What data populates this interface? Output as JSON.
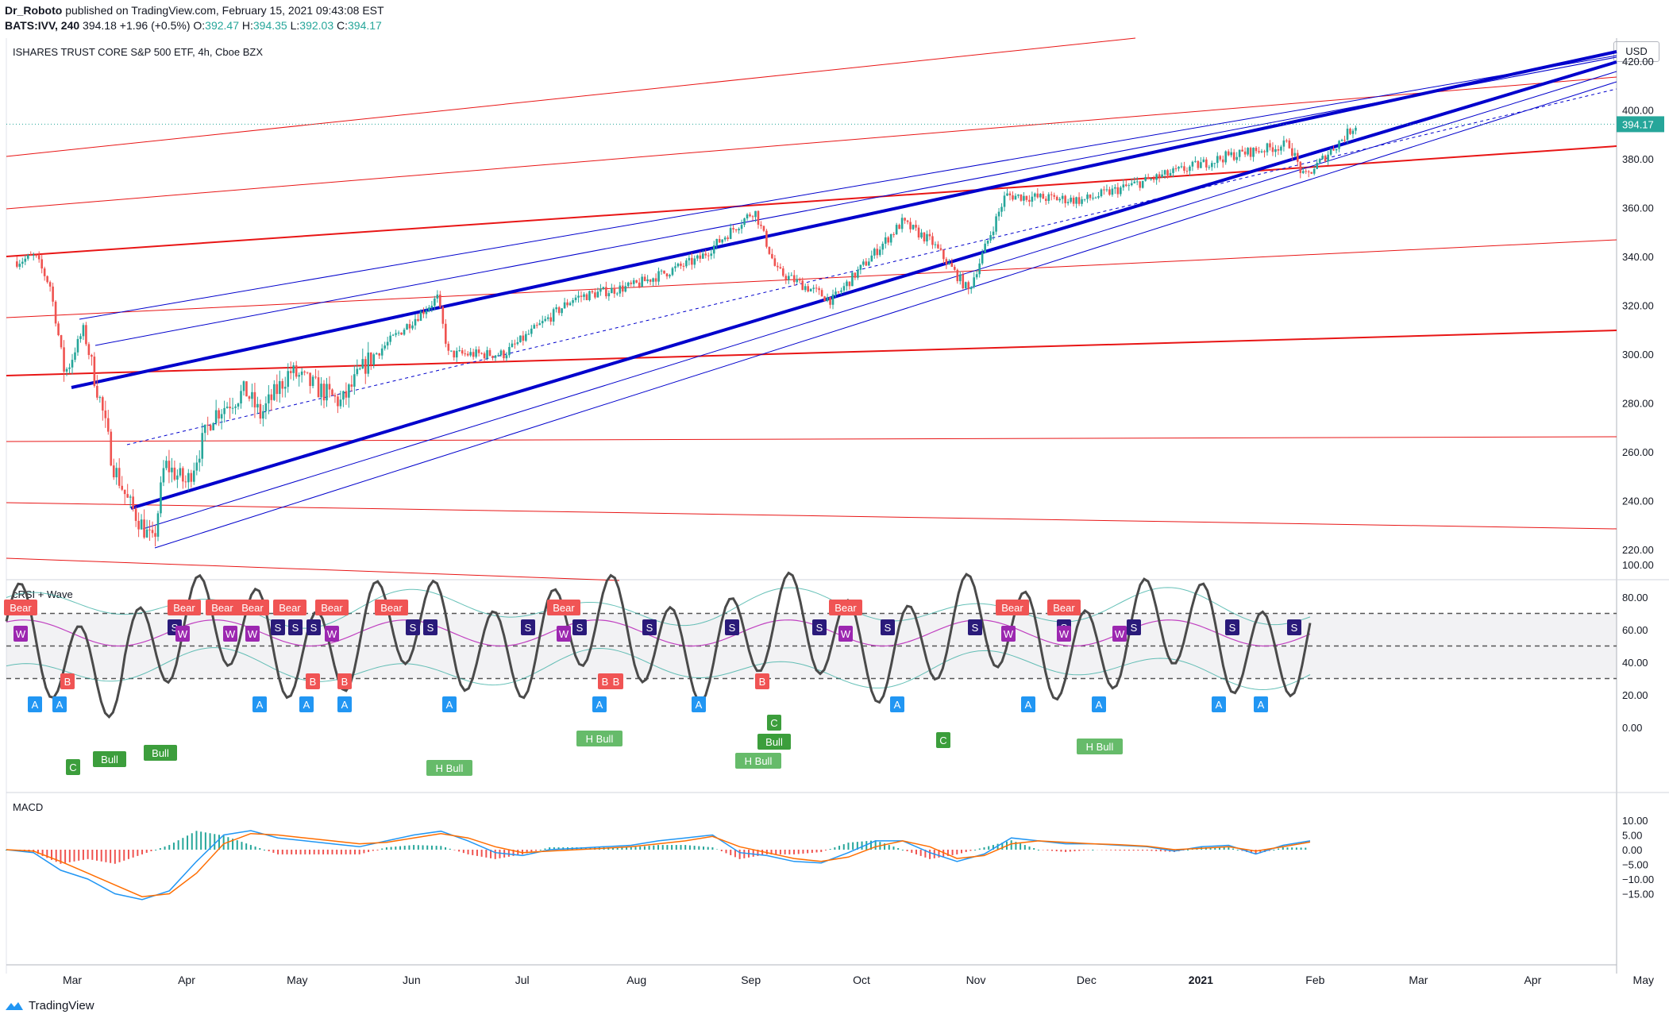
{
  "header": {
    "author": "Dr_Roboto",
    "published": "published on TradingView.com, February 15, 2021 09:43:08 EST",
    "symbol": "BATS:IVV, 240",
    "last": "394.18",
    "change": "+1.96 (+0.5%)",
    "o_label": "O:",
    "o": "392.47",
    "h_label": "H:",
    "h": "394.35",
    "l_label": "L:",
    "l": "392.03",
    "c_label": "C:",
    "c": "394.17"
  },
  "chart_title": "ISHARES TRUST CORE S&P 500 ETF, 4h, Cboe BZX",
  "currency": "USD",
  "last_price_label": "394.17",
  "footer_brand": "TradingView",
  "colors": {
    "up": "#26a69a",
    "down": "#ef5350",
    "blue_line": "#0000cc",
    "red_line": "#e81515",
    "rsi_line": "#4a4a4a",
    "rsi_ma": "#c040c0",
    "macd": "#2196f3",
    "signal": "#ff6d00",
    "bear_label": "#f05454",
    "bull_label": "#3c9e3c",
    "a_label": "#2196f3",
    "s_label": "#2a1a7a",
    "w_label": "#9c27b0"
  },
  "chart_data": [
    {
      "type": "candlestick",
      "title": "ISHARES TRUST CORE S&P 500 ETF, 4h, Cboe BZX",
      "xlabel": "",
      "ylabel": "USD",
      "y_ticks": [
        "420.00",
        "400.00",
        "380.00",
        "360.00",
        "340.00",
        "320.00",
        "300.00",
        "280.00",
        "260.00",
        "240.00",
        "220.00"
      ],
      "ylim": [
        212,
        428
      ],
      "x_ticks": [
        "Mar",
        "Apr",
        "May",
        "Jun",
        "Jul",
        "Aug",
        "Sep",
        "Oct",
        "Nov",
        "Dec",
        "2021",
        "Feb",
        "Mar",
        "Apr",
        "May"
      ],
      "grid": false,
      "price_path": [
        {
          "t": "2020-02-15",
          "close": 338
        },
        {
          "t": "2020-02-20",
          "close": 340
        },
        {
          "t": "2020-02-24",
          "close": 328
        },
        {
          "t": "2020-02-28",
          "close": 292
        },
        {
          "t": "2020-03-04",
          "close": 310
        },
        {
          "t": "2020-03-09",
          "close": 278
        },
        {
          "t": "2020-03-12",
          "close": 255
        },
        {
          "t": "2020-03-16",
          "close": 240
        },
        {
          "t": "2020-03-23",
          "close": 222
        },
        {
          "t": "2020-03-26",
          "close": 255
        },
        {
          "t": "2020-04-01",
          "close": 247
        },
        {
          "t": "2020-04-08",
          "close": 275
        },
        {
          "t": "2020-04-17",
          "close": 285
        },
        {
          "t": "2020-04-21",
          "close": 275
        },
        {
          "t": "2020-04-29",
          "close": 293
        },
        {
          "t": "2020-05-13",
          "close": 280
        },
        {
          "t": "2020-05-20",
          "close": 297
        },
        {
          "t": "2020-06-08",
          "close": 323
        },
        {
          "t": "2020-06-11",
          "close": 300
        },
        {
          "t": "2020-06-26",
          "close": 300
        },
        {
          "t": "2020-07-15",
          "close": 323
        },
        {
          "t": "2020-07-31",
          "close": 328
        },
        {
          "t": "2020-08-18",
          "close": 339
        },
        {
          "t": "2020-09-02",
          "close": 359
        },
        {
          "t": "2020-09-08",
          "close": 334
        },
        {
          "t": "2020-09-23",
          "close": 322
        },
        {
          "t": "2020-10-12",
          "close": 354
        },
        {
          "t": "2020-10-20",
          "close": 346
        },
        {
          "t": "2020-10-30",
          "close": 326
        },
        {
          "t": "2020-11-09",
          "close": 365
        },
        {
          "t": "2020-11-30",
          "close": 363
        },
        {
          "t": "2020-12-15",
          "close": 370
        },
        {
          "t": "2021-01-08",
          "close": 381
        },
        {
          "t": "2021-01-25",
          "close": 386
        },
        {
          "t": "2021-01-29",
          "close": 372
        },
        {
          "t": "2021-02-12",
          "close": 394
        }
      ],
      "last": 394.17
    },
    {
      "type": "line",
      "title": "cRSI + Wave",
      "y_ticks": [
        "100.00",
        "80.00",
        "60.00",
        "40.00",
        "20.00",
        "0.00"
      ],
      "ylim": [
        -10,
        105
      ],
      "levels": [
        70,
        50,
        30
      ],
      "labels": [
        "Bear",
        "W",
        "S",
        "A",
        "B",
        "C",
        "Bull",
        "H Bull"
      ]
    },
    {
      "type": "line",
      "title": "MACD",
      "y_ticks": [
        "10.00",
        "5.00",
        "0.00",
        "−5.00",
        "−10.00",
        "−15.00"
      ],
      "ylim": [
        -19,
        10
      ],
      "series": [
        {
          "name": "MACD",
          "values": [
            0,
            -1,
            -7,
            -10,
            -15,
            -17,
            -14,
            -4,
            5,
            6.5,
            4,
            3,
            2,
            1,
            3,
            5,
            6.3,
            3,
            -1,
            -2,
            0,
            0.5,
            1,
            1.5,
            3,
            4,
            5,
            -1,
            -2,
            -4,
            -4.5,
            -1,
            3,
            3,
            -1,
            -4,
            -1.5,
            4,
            3,
            2,
            2,
            1.5,
            1,
            -0.5,
            1,
            1.5,
            -1.5,
            1.5,
            3
          ]
        },
        {
          "name": "Signal",
          "values": [
            0,
            -0.5,
            -4,
            -8,
            -12,
            -16,
            -15,
            -8,
            2,
            5.5,
            5,
            4,
            3,
            2,
            2.5,
            4,
            5.5,
            4,
            1,
            -1,
            -0.5,
            0,
            0.5,
            1,
            2,
            3,
            4.5,
            1,
            -1,
            -3,
            -4,
            -2.5,
            1,
            3,
            1,
            -3,
            -2,
            2,
            3,
            2.5,
            2,
            1.7,
            1.2,
            0,
            0.5,
            1,
            -0.5,
            1,
            2.6
          ]
        }
      ],
      "x": [
        0,
        1,
        2,
        3,
        4,
        5,
        6,
        7,
        8,
        9,
        10,
        11,
        12,
        13,
        14,
        15,
        16,
        17,
        18,
        19,
        20,
        21,
        22,
        23,
        24,
        25,
        26,
        27,
        28,
        29,
        30,
        31,
        32,
        33,
        34,
        35,
        36,
        37,
        38,
        39,
        40,
        41,
        42,
        43,
        44,
        45,
        46,
        47,
        48
      ]
    }
  ]
}
